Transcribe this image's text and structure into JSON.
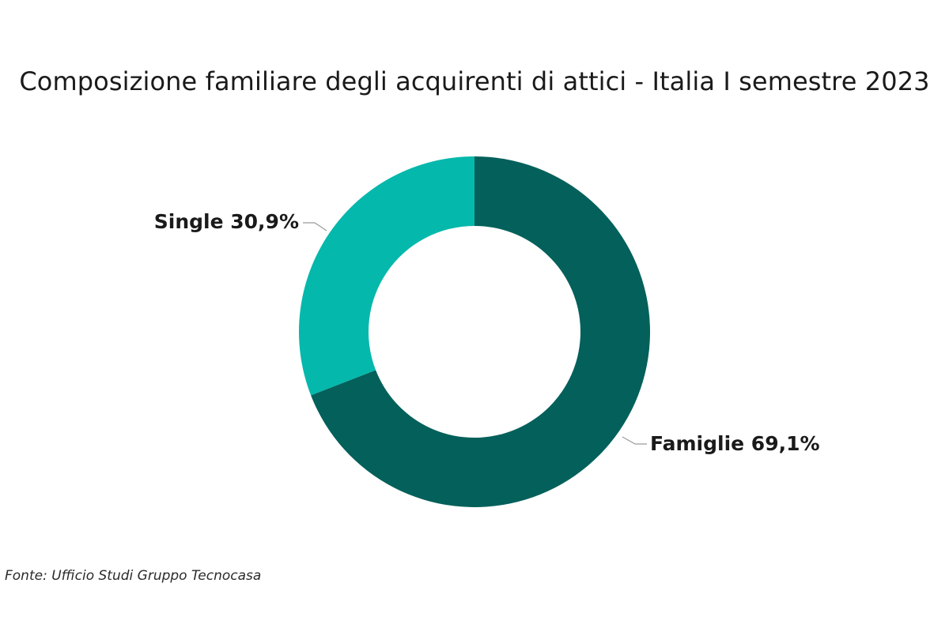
{
  "chart_data": {
    "type": "pie",
    "title": "Composizione familiare degli acquirenti di attici - Italia I semestre 2023",
    "donut": true,
    "slices": [
      {
        "name": "Famiglie",
        "value": 69.1,
        "label": "Famiglie 69,1%",
        "color": "#03605a"
      },
      {
        "name": "Single",
        "value": 30.9,
        "label": "Single 30,9%",
        "color": "#05b8ac"
      }
    ]
  },
  "source": "Fonte: Ufficio Studi Gruppo Tecnocasa"
}
